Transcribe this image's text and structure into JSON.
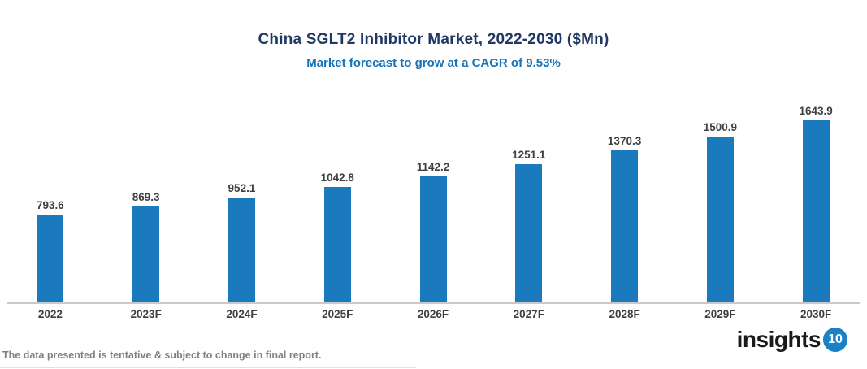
{
  "chart_data": {
    "type": "bar",
    "title": "China SGLT2 Inhibitor Market, 2022-2030 ($Mn)",
    "subtitle": "Market forecast to grow at a CAGR of 9.53%",
    "categories": [
      "2022",
      "2023F",
      "2024F",
      "2025F",
      "2026F",
      "2027F",
      "2028F",
      "2029F",
      "2030F"
    ],
    "values": [
      793.6,
      869.3,
      952.1,
      1042.8,
      1142.2,
      1251.1,
      1370.3,
      1500.9,
      1643.9
    ],
    "xlabel": "",
    "ylabel": "",
    "ylim": [
      0,
      1800
    ],
    "grid": false,
    "legend": false,
    "bar_color": "#1b7abe",
    "value_label_color": "#3f3f3f",
    "axis_label_color": "#3f3f3f",
    "title_color": "#1f3864",
    "subtitle_color": "#1673ba",
    "axis_line_color": "#c9c9c9"
  },
  "footer": {
    "disclaimer": "The data presented is tentative & subject to change in final report."
  },
  "logo": {
    "text": "insights",
    "badge": "10"
  }
}
